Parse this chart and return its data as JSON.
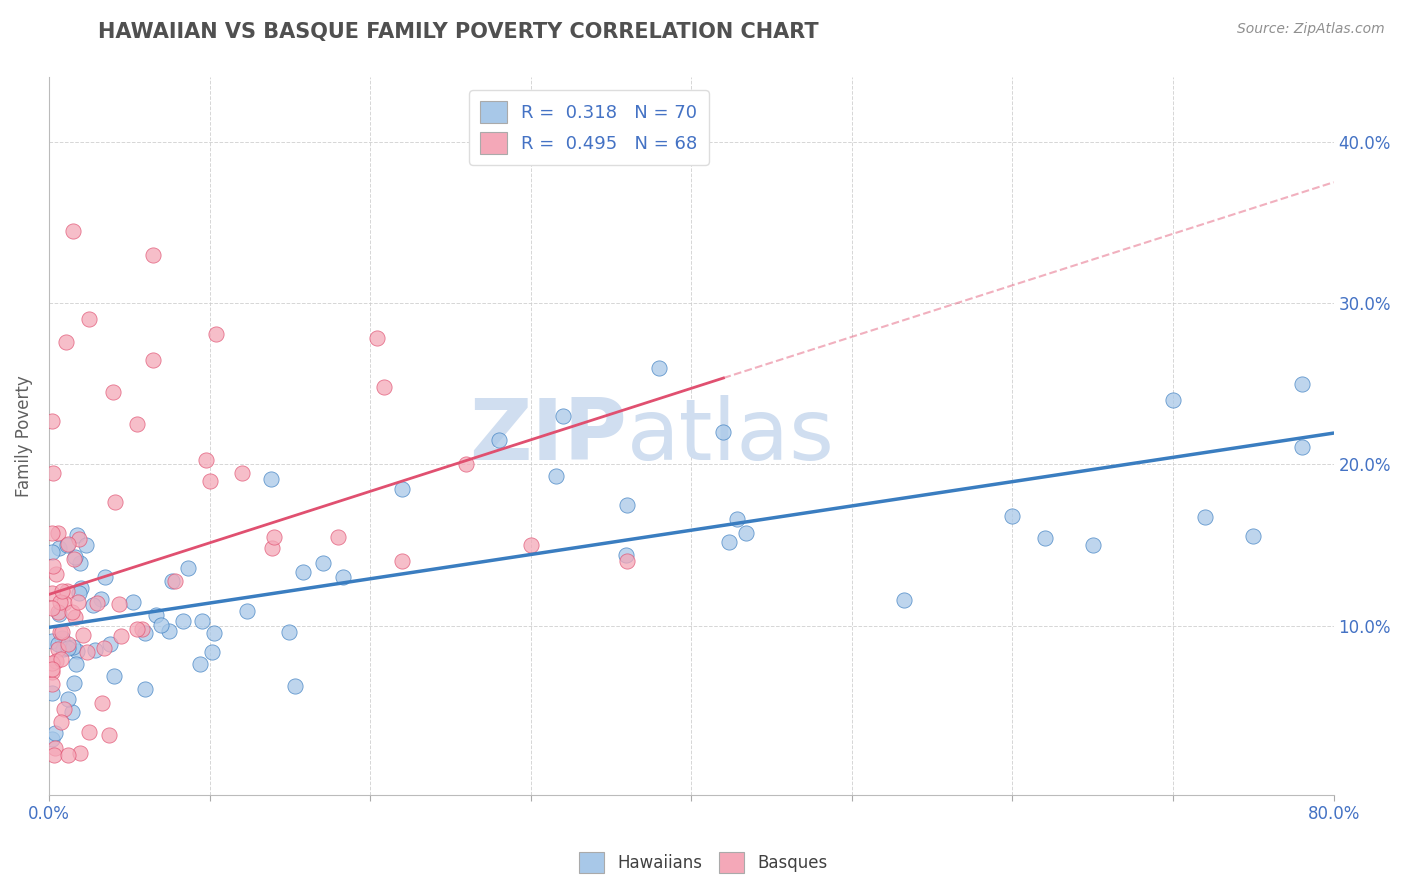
{
  "title": "HAWAIIAN VS BASQUE FAMILY POVERTY CORRELATION CHART",
  "source_text": "Source: ZipAtlas.com",
  "ylabel": "Family Poverty",
  "xlim": [
    0.0,
    0.8
  ],
  "ylim": [
    -0.005,
    0.44
  ],
  "color_hawaiian": "#A8C8E8",
  "color_basque": "#F4A8B8",
  "trendline_hawaiian": "#3A7DC0",
  "trendline_basque": "#E05070",
  "background_color": "#FFFFFF",
  "grid_color": "#CCCCCC",
  "title_color": "#404040",
  "axis_label_color": "#4472C4",
  "watermark_color": "#D0DEF0",
  "scatter_size": 120,
  "scatter_alpha": 0.75
}
